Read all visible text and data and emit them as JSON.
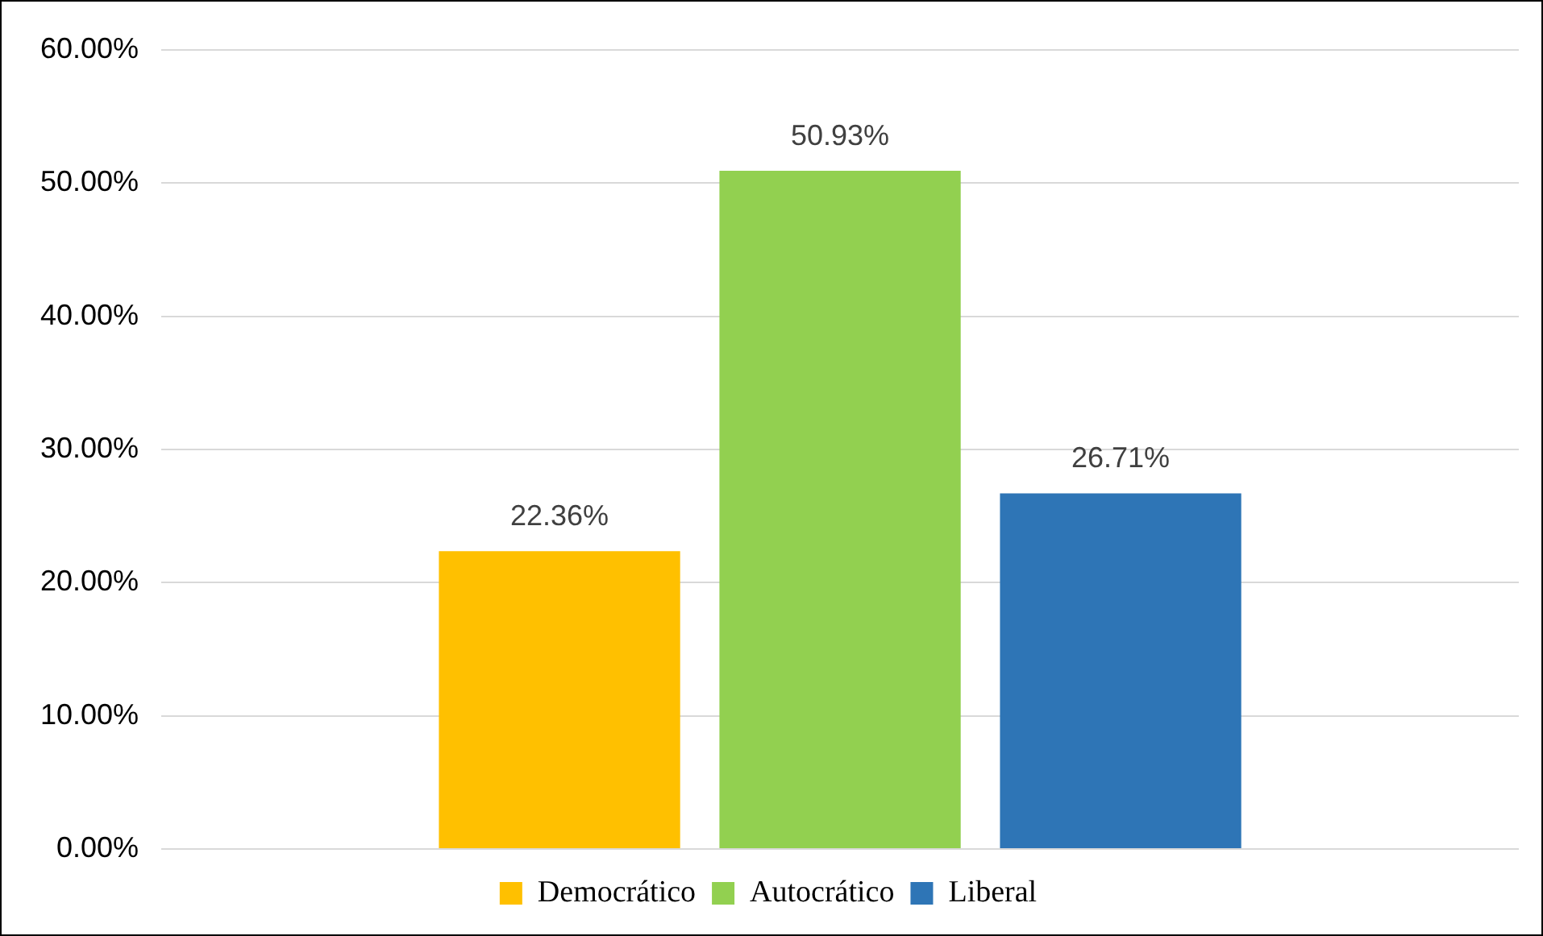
{
  "chart_data": {
    "type": "bar",
    "categories": [
      null
    ],
    "series": [
      {
        "name": "Democrático",
        "color": "#ffc000",
        "values": [
          22.36
        ],
        "value_labels": [
          "22.36%"
        ]
      },
      {
        "name": "Autocrático",
        "color": "#92d050",
        "values": [
          50.93
        ],
        "value_labels": [
          "50.93%"
        ]
      },
      {
        "name": "Liberal",
        "color": "#2e75b6",
        "values": [
          26.71
        ],
        "value_labels": [
          "26.71%"
        ]
      }
    ],
    "ylim": [
      0,
      60
    ],
    "yticks": [
      {
        "value": 0,
        "label": "0.00%"
      },
      {
        "value": 10,
        "label": "10.00%"
      },
      {
        "value": 20,
        "label": "20.00%"
      },
      {
        "value": 30,
        "label": "30.00%"
      },
      {
        "value": 40,
        "label": "40.00%"
      },
      {
        "value": 50,
        "label": "50.00%"
      },
      {
        "value": 60,
        "label": "60.00%"
      }
    ],
    "grid": "y",
    "legend": "bottom",
    "tick_labels": "y"
  }
}
